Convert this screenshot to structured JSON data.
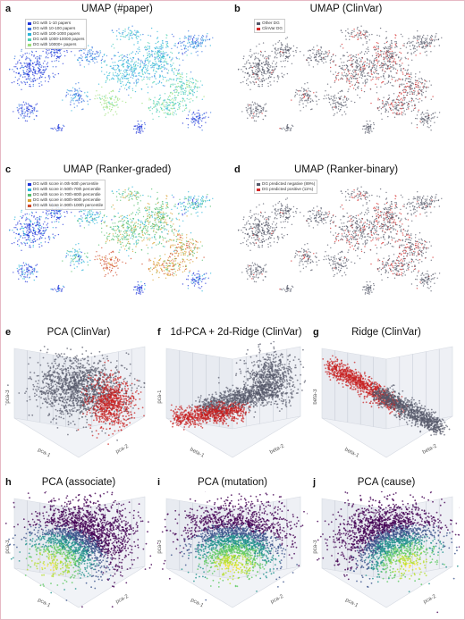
{
  "umap_panels": [
    {
      "id": "a",
      "label": "a",
      "title": "UMAP (#paper)",
      "legend": [
        {
          "text": "DG with 1-10 papers",
          "color": "#1f33d8"
        },
        {
          "text": "DG with 10-100 papers",
          "color": "#3a78e0"
        },
        {
          "text": "DG with 100-1000 papers",
          "color": "#2bb4d9"
        },
        {
          "text": "DG with 1000-10000 papers",
          "color": "#4fd0b0"
        },
        {
          "text": "DG with 10000+ papers",
          "color": "#9ee07a"
        }
      ],
      "palette": [
        "#1f33d8",
        "#3a78e0",
        "#2bb4d9",
        "#4fd0b0",
        "#9ee07a"
      ]
    },
    {
      "id": "b",
      "label": "b",
      "title": "UMAP (ClinVar)",
      "legend": [
        {
          "text": "Other DG",
          "color": "#55596a"
        },
        {
          "text": "ClinVar DG",
          "color": "#d42a2a"
        }
      ],
      "palette": [
        "#55596a",
        "#55596a",
        "#55596a",
        "#d42a2a",
        "#55596a"
      ]
    },
    {
      "id": "c",
      "label": "c",
      "title": "UMAP (Ranker-graded)",
      "legend": [
        {
          "text": "DG with score in 0th-50th percentile",
          "color": "#1f33d8"
        },
        {
          "text": "DG with score in 50th-70th percentile",
          "color": "#2bb4d9"
        },
        {
          "text": "DG with score in 70th-80th percentile",
          "color": "#55c070"
        },
        {
          "text": "DG with score in 80th-90th percentile",
          "color": "#d9a030"
        },
        {
          "text": "DG with score in 90th-100th percentile",
          "color": "#d04a2a"
        }
      ],
      "palette": [
        "#1f33d8",
        "#2bb4d9",
        "#55c070",
        "#d9a030",
        "#d04a2a"
      ]
    },
    {
      "id": "d",
      "label": "d",
      "title": "UMAP (Ranker-binary)",
      "legend": [
        {
          "text": "DG predicted negative (89%)",
          "color": "#55596a"
        },
        {
          "text": "DG predicted positive (11%)",
          "color": "#d42a2a"
        }
      ],
      "palette": [
        "#55596a",
        "#55596a",
        "#55596a",
        "#d42a2a",
        "#55596a"
      ]
    }
  ],
  "scatter3d_panels": [
    {
      "id": "e",
      "label": "e",
      "title": "PCA (ClinVar)",
      "axis_left": "pca-3",
      "axis_bottom": "pca-1",
      "axis_right": "pca-2",
      "style": "clinvar-pca"
    },
    {
      "id": "f",
      "label": "f",
      "title": "1d-PCA + 2d-Ridge (ClinVar)",
      "axis_left": "pca-1",
      "axis_bottom": "beta-1",
      "axis_right": "beta-2",
      "style": "clinvar-mixed"
    },
    {
      "id": "g",
      "label": "g",
      "title": "Ridge (ClinVar)",
      "axis_left": "beta-3",
      "axis_bottom": "beta-1",
      "axis_right": "beta-2",
      "style": "clinvar-ridge"
    },
    {
      "id": "h",
      "label": "h",
      "title": "PCA (associate)",
      "axis_left": "pca-3",
      "axis_bottom": "pca-1",
      "axis_right": "pca-2",
      "style": "viridis-left"
    },
    {
      "id": "i",
      "label": "i",
      "title": "PCA (mutation)",
      "axis_left": "pca-3",
      "axis_bottom": "pca-1",
      "axis_right": "pca-2",
      "style": "viridis-center"
    },
    {
      "id": "j",
      "label": "j",
      "title": "PCA (cause)",
      "axis_left": "pca-3",
      "axis_bottom": "pca-1",
      "axis_right": "pca-2",
      "style": "viridis-right"
    }
  ]
}
